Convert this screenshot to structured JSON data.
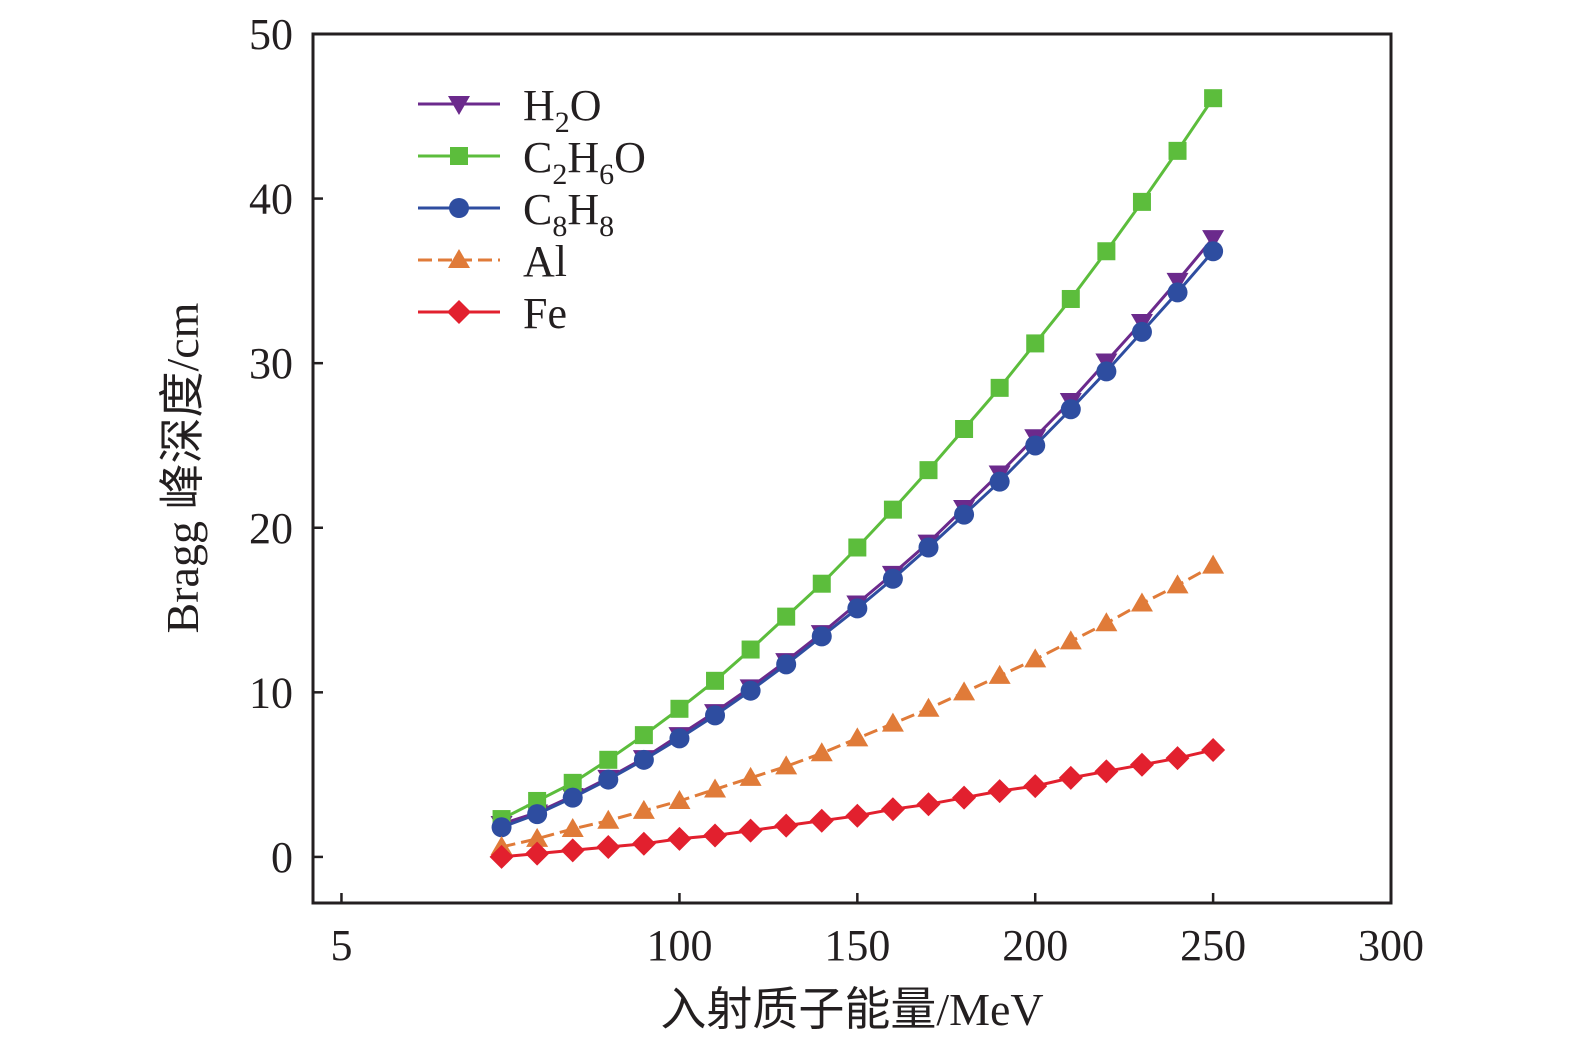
{
  "chart_data": {
    "type": "line",
    "title": "",
    "xlabel": "入射质子能量/MeV",
    "ylabel": "Bragg 峰深度/cm",
    "xlim": [
      -3,
      300
    ],
    "ylim": [
      -2.8,
      50
    ],
    "x_ticks": [
      5,
      100,
      150,
      200,
      250,
      300
    ],
    "x_tick_labels": [
      "5",
      "100",
      "150",
      "200",
      "250",
      "300"
    ],
    "y_ticks": [
      0,
      10,
      20,
      30,
      40,
      50
    ],
    "y_tick_labels": [
      "0",
      "10",
      "20",
      "30",
      "40",
      "50"
    ],
    "grid": false,
    "legend_position": "top-left",
    "x": [
      50,
      60,
      70,
      80,
      90,
      100,
      110,
      120,
      130,
      140,
      150,
      160,
      170,
      180,
      190,
      200,
      210,
      220,
      230,
      240,
      250
    ],
    "series": [
      {
        "name": "H2O",
        "label_base": "H",
        "label_sub1": "2",
        "label_mid": "O",
        "label_sub2": "",
        "label_end": "",
        "color": "#6b2a8c",
        "marker": "triangle-down",
        "dashed": false,
        "values": [
          2.0,
          2.7,
          3.7,
          4.8,
          6.0,
          7.4,
          8.8,
          10.3,
          11.9,
          13.6,
          15.4,
          17.2,
          19.1,
          21.2,
          23.3,
          25.5,
          27.7,
          30.1,
          32.5,
          35.0,
          37.6
        ]
      },
      {
        "name": "C2H6O",
        "label_base": "C",
        "label_sub1": "2",
        "label_mid": "H",
        "label_sub2": "6",
        "label_end": "O",
        "color": "#5cbd3c",
        "marker": "square",
        "dashed": false,
        "values": [
          2.3,
          3.4,
          4.5,
          5.9,
          7.4,
          9.0,
          10.7,
          12.6,
          14.6,
          16.6,
          18.8,
          21.1,
          23.5,
          26.0,
          28.5,
          31.2,
          33.9,
          36.8,
          39.8,
          42.9,
          46.1
        ]
      },
      {
        "name": "C8H8",
        "label_base": "C",
        "label_sub1": "8",
        "label_mid": "H",
        "label_sub2": "8",
        "label_end": "",
        "color": "#2e4da0",
        "marker": "circle",
        "dashed": false,
        "values": [
          1.8,
          2.6,
          3.6,
          4.7,
          5.9,
          7.2,
          8.6,
          10.1,
          11.7,
          13.4,
          15.1,
          16.9,
          18.8,
          20.8,
          22.8,
          25.0,
          27.2,
          29.5,
          31.9,
          34.3,
          36.8
        ]
      },
      {
        "name": "Al",
        "label_base": "Al",
        "label_sub1": "",
        "label_mid": "",
        "label_sub2": "",
        "label_end": "",
        "color": "#e07b39",
        "marker": "triangle-up",
        "dashed": true,
        "values": [
          0.6,
          1.1,
          1.7,
          2.2,
          2.8,
          3.4,
          4.1,
          4.8,
          5.5,
          6.3,
          7.2,
          8.1,
          9.0,
          10.0,
          11.0,
          12.0,
          13.1,
          14.2,
          15.4,
          16.5,
          17.7
        ]
      },
      {
        "name": "Fe",
        "label_base": "Fe",
        "label_sub1": "",
        "label_mid": "",
        "label_sub2": "",
        "label_end": "",
        "color": "#e2202e",
        "marker": "diamond",
        "dashed": false,
        "values": [
          0.0,
          0.2,
          0.4,
          0.6,
          0.8,
          1.1,
          1.3,
          1.6,
          1.9,
          2.2,
          2.5,
          2.9,
          3.2,
          3.6,
          4.0,
          4.3,
          4.8,
          5.2,
          5.6,
          6.0,
          6.5
        ]
      }
    ]
  }
}
